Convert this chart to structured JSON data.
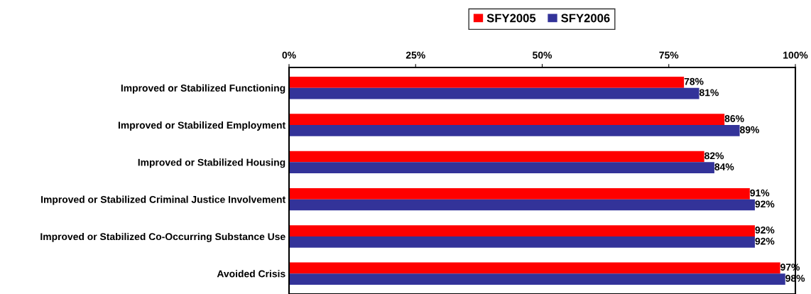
{
  "chart_data": {
    "type": "bar",
    "orientation": "horizontal",
    "categories": [
      "Improved or Stabilized Functioning",
      "Improved or Stabilized Employment",
      "Improved or Stabilized Housing",
      "Improved or Stabilized Criminal Justice Involvement",
      "Improved or Stabilized Co-Occurring Substance Use",
      "Avoided Crisis"
    ],
    "series": [
      {
        "name": "SFY2005",
        "color": "#ff0000",
        "values": [
          78,
          86,
          82,
          91,
          92,
          97
        ],
        "value_labels": [
          "78%",
          "86%",
          "82%",
          "91%",
          "92%",
          "97%"
        ]
      },
      {
        "name": "SFY2006",
        "color": "#333399",
        "values": [
          81,
          89,
          84,
          92,
          92,
          98
        ],
        "value_labels": [
          "81%",
          "89%",
          "84%",
          "92%",
          "92%",
          "98%"
        ]
      }
    ],
    "xlim": [
      0,
      100
    ],
    "xticks": [
      {
        "value": 0,
        "label": "0%"
      },
      {
        "value": 25,
        "label": "25%"
      },
      {
        "value": 50,
        "label": "50%"
      },
      {
        "value": 75,
        "label": "75%"
      },
      {
        "value": 100,
        "label": "100%"
      }
    ],
    "grid": false,
    "legend": "top"
  }
}
